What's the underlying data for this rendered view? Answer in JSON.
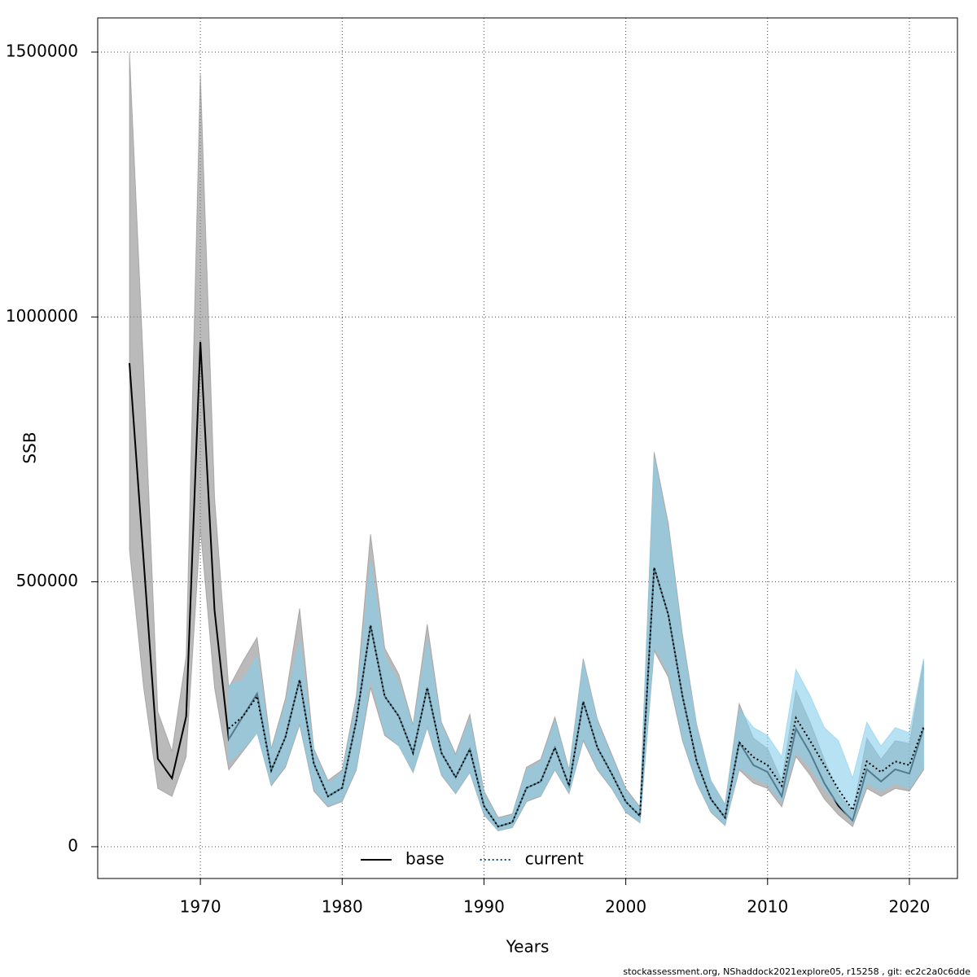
{
  "chart_data": {
    "type": "line",
    "xlabel": "Years",
    "ylabel": "SSB",
    "footnote": "stockassessment.org, NShaddock2021explore05, r15258 , git: ec2c2a0c6dde",
    "x": [
      1965,
      1966,
      1967,
      1968,
      1969,
      1970,
      1971,
      1972,
      1973,
      1974,
      1975,
      1976,
      1977,
      1978,
      1979,
      1980,
      1981,
      1982,
      1983,
      1984,
      1985,
      1986,
      1987,
      1988,
      1989,
      1990,
      1991,
      1992,
      1993,
      1994,
      1995,
      1996,
      1997,
      1998,
      1999,
      2000,
      2001,
      2002,
      2003,
      2004,
      2005,
      2006,
      2007,
      2008,
      2009,
      2010,
      2011,
      2012,
      2013,
      2014,
      2015,
      2016,
      2017,
      2018,
      2019,
      2020,
      2021
    ],
    "series": [
      {
        "name": "base",
        "color": "#000000",
        "band_color": "#8c8c8c",
        "dashed": false,
        "values": [
          913000,
          540000,
          166000,
          129000,
          246000,
          953000,
          446000,
          203000,
          246000,
          289000,
          144000,
          207000,
          315000,
          157000,
          95000,
          111000,
          238000,
          418000,
          284000,
          246000,
          177000,
          300000,
          177000,
          131000,
          184000,
          77000,
          38000,
          46000,
          111000,
          123000,
          187000,
          115000,
          274000,
          187000,
          138000,
          85000,
          58000,
          527000,
          438000,
          284000,
          161000,
          90000,
          55000,
          197000,
          154000,
          141000,
          95000,
          223000,
          177000,
          120000,
          77000,
          49000,
          146000,
          123000,
          146000,
          138000,
          223000
        ],
        "lower": [
          560000,
          300000,
          110000,
          95000,
          170000,
          600000,
          300000,
          145000,
          180000,
          215000,
          115000,
          150000,
          230000,
          105000,
          75000,
          85000,
          145000,
          300000,
          210000,
          190000,
          140000,
          225000,
          135000,
          100000,
          140000,
          60000,
          30000,
          36000,
          85000,
          95000,
          145000,
          100000,
          200000,
          145000,
          110000,
          65000,
          45000,
          370000,
          320000,
          200000,
          120000,
          65000,
          40000,
          145000,
          120000,
          110000,
          75000,
          170000,
          135000,
          90000,
          60000,
          38000,
          110000,
          95000,
          110000,
          105000,
          145000
        ],
        "upper": [
          1500000,
          900000,
          255000,
          180000,
          360000,
          1460000,
          660000,
          300000,
          350000,
          395000,
          185000,
          280000,
          450000,
          185000,
          125000,
          145000,
          285000,
          590000,
          375000,
          325000,
          230000,
          420000,
          235000,
          175000,
          250000,
          105000,
          55000,
          62000,
          150000,
          165000,
          245000,
          145000,
          355000,
          240000,
          175000,
          110000,
          75000,
          745000,
          610000,
          400000,
          230000,
          125000,
          80000,
          270000,
          205000,
          185000,
          125000,
          295000,
          235000,
          165000,
          100000,
          65000,
          205000,
          165000,
          200000,
          195000,
          350000
        ]
      },
      {
        "name": "current",
        "color": "#0b4f7c",
        "band_color": "#87ceeb",
        "dashed": true,
        "values": [
          null,
          null,
          null,
          null,
          null,
          null,
          null,
          223000,
          246000,
          284000,
          144000,
          207000,
          315000,
          157000,
          95000,
          111000,
          238000,
          418000,
          284000,
          246000,
          177000,
          300000,
          177000,
          131000,
          184000,
          77000,
          38000,
          46000,
          111000,
          123000,
          187000,
          115000,
          274000,
          187000,
          138000,
          85000,
          58000,
          527000,
          438000,
          284000,
          161000,
          90000,
          55000,
          197000,
          169000,
          154000,
          115000,
          243000,
          200000,
          154000,
          108000,
          69000,
          161000,
          141000,
          161000,
          154000,
          226000
        ],
        "lower": [
          null,
          null,
          null,
          null,
          null,
          null,
          null,
          160000,
          185000,
          215000,
          118000,
          155000,
          235000,
          110000,
          78000,
          88000,
          150000,
          320000,
          215000,
          190000,
          142000,
          228000,
          138000,
          102000,
          142000,
          62000,
          31000,
          37000,
          88000,
          97000,
          147000,
          102000,
          205000,
          148000,
          112000,
          67000,
          46000,
          380000,
          330000,
          205000,
          122000,
          67000,
          42000,
          150000,
          130000,
          118000,
          85000,
          180000,
          150000,
          110000,
          80000,
          45000,
          120000,
          105000,
          120000,
          110000,
          150000
        ],
        "upper": [
          null,
          null,
          null,
          null,
          null,
          null,
          null,
          305000,
          315000,
          360000,
          180000,
          270000,
          390000,
          180000,
          120000,
          140000,
          270000,
          540000,
          360000,
          310000,
          225000,
          390000,
          230000,
          170000,
          240000,
          100000,
          52000,
          60000,
          145000,
          160000,
          238000,
          140000,
          350000,
          235000,
          170000,
          105000,
          72000,
          735000,
          600000,
          390000,
          225000,
          125000,
          80000,
          260000,
          225000,
          210000,
          170000,
          335000,
          285000,
          225000,
          200000,
          130000,
          235000,
          190000,
          225000,
          215000,
          355000
        ]
      }
    ],
    "xlim": [
      1962.76,
      2023.39
    ],
    "ylim": [
      -60000,
      1564500
    ],
    "xticks": [
      1970,
      1980,
      1990,
      2000,
      2010,
      2020
    ],
    "yticks": [
      0,
      500000,
      1000000,
      1500000
    ],
    "grid": true,
    "legend": "bottom"
  }
}
